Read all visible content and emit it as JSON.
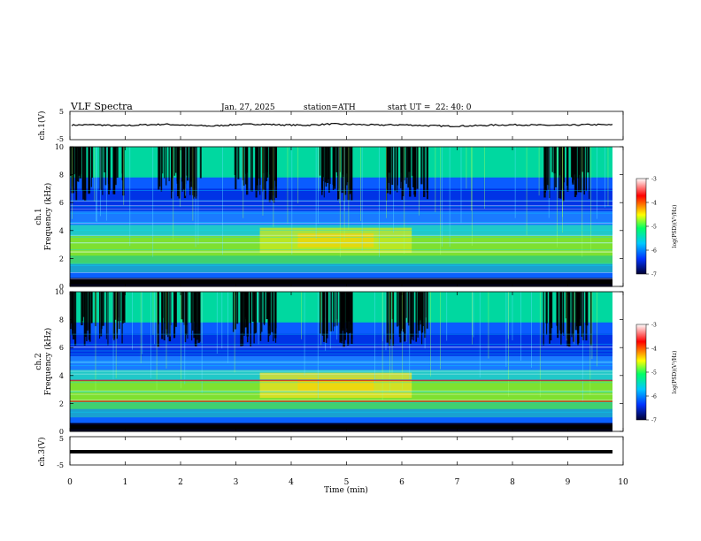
{
  "header": {
    "title": "VLF  Spectra",
    "date": "Jan. 27, 2025",
    "station": "station=ATH",
    "start_label": "start  UT  =",
    "start_time": "22: 40: 0"
  },
  "colorscale": {
    "label": "log(PSD)(V²/Hz)",
    "ticks": [
      "-3",
      "-4",
      "-5",
      "-6",
      "-7"
    ],
    "stops": [
      "#ffffff",
      "#ff0000",
      "#ffff00",
      "#00ff66",
      "#00c8ff",
      "#0033ff",
      "#000033"
    ]
  },
  "chart_data": [
    {
      "type": "line",
      "panel": "ch1-waveform",
      "ylabel": "ch.1(V)",
      "ylim": [
        -5,
        5
      ],
      "yticks": [
        "5",
        "-5"
      ],
      "x_range_min": [
        0,
        10
      ],
      "series": [
        {
          "values": [
            0.3,
            0.5,
            -0.2,
            0.4,
            0.8,
            0.1,
            -0.3,
            0.6,
            0.9,
            0.4,
            0.2,
            1.0,
            0.7,
            0.3,
            0.5,
            0.0,
            -0.4,
            -0.2,
            0.3,
            0.5,
            0.2,
            0.1,
            0.6,
            0.4
          ]
        }
      ]
    },
    {
      "type": "heatmap",
      "panel": "ch1-spectrogram",
      "ylabel": "ch.1\nFrequency (kHz)",
      "ylim": [
        0,
        10
      ],
      "yticks": [
        "10",
        "8",
        "6",
        "4",
        "2",
        "0"
      ],
      "xlim": [
        0,
        10
      ],
      "clim": [
        -7,
        -3
      ]
    },
    {
      "type": "heatmap",
      "panel": "ch2-spectrogram",
      "ylabel": "ch.2\nFrequency (kHz)",
      "ylim": [
        0,
        10
      ],
      "yticks": [
        "10",
        "8",
        "6",
        "4",
        "2",
        "0"
      ],
      "xlim": [
        0,
        10
      ],
      "clim": [
        -7,
        -3
      ]
    },
    {
      "type": "line",
      "panel": "ch3-waveform",
      "ylabel": "ch.3(V)",
      "ylim": [
        -5,
        5
      ],
      "yticks": [
        "5",
        "-5"
      ],
      "series": [
        {
          "values": [
            -1.0,
            -1.0,
            -1.0,
            -1.0,
            -1.0,
            -1.0
          ]
        }
      ]
    }
  ],
  "xaxis": {
    "label": "Time  (min)",
    "ticks": [
      "0",
      "1",
      "2",
      "3",
      "4",
      "5",
      "6",
      "7",
      "8",
      "9",
      "10"
    ]
  }
}
